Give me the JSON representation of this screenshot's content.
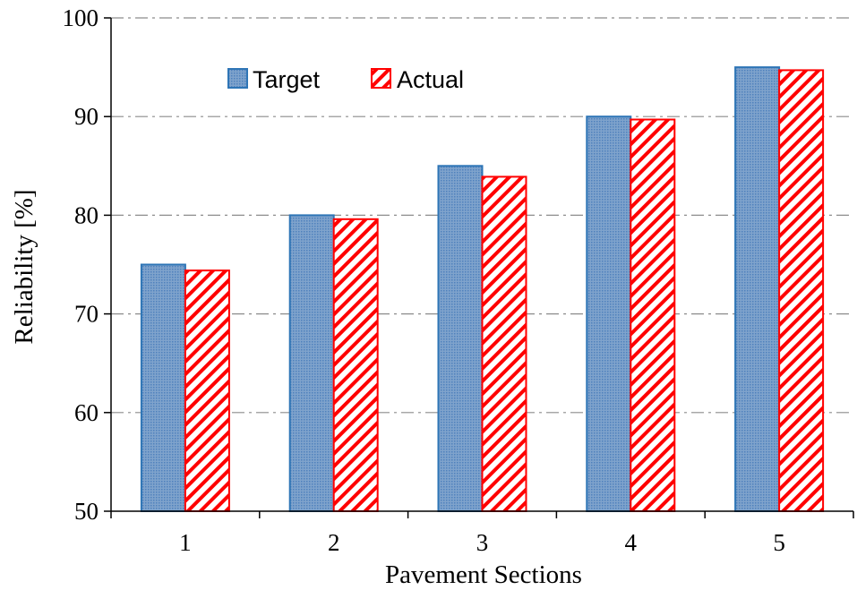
{
  "chart_data": {
    "type": "bar",
    "xlabel": "Pavement Sections",
    "ylabel": "Reliability [%]",
    "categories": [
      "1",
      "2",
      "3",
      "4",
      "5"
    ],
    "ylim": [
      50,
      100
    ],
    "yticks": [
      50,
      60,
      70,
      80,
      90,
      100
    ],
    "grid": "horizontal dash-dot",
    "legend_position": "top-left",
    "series": [
      {
        "name": "Target",
        "values": [
          75,
          80,
          85,
          90,
          95
        ],
        "color": "#2E75B6",
        "fill_color": "#7FA3CC",
        "pattern": "dotted"
      },
      {
        "name": "Actual",
        "values": [
          74.4,
          79.6,
          83.9,
          89.7,
          94.7
        ],
        "color": "#FF0000",
        "pattern": "diagonal-hatch"
      }
    ]
  }
}
